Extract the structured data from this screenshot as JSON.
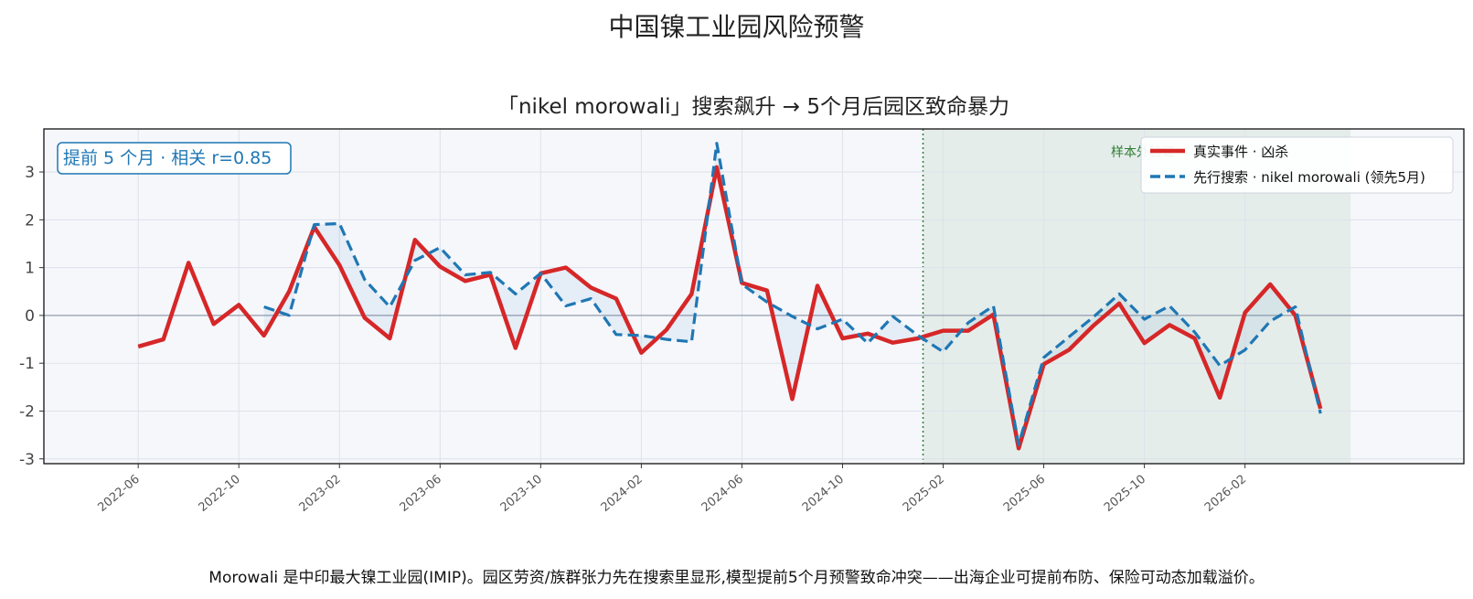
{
  "suptitle": "中国镍工业园风险预警",
  "footer": "Morowali 是中印最大镍工业园(IMIP)。园区劳资/族群张力先在搜索里显形,模型提前5个月预警致命冲突——出海企业可提前布防、保险可动态加载溢价。",
  "colors": {
    "actual": "#d62728",
    "search": "#1f77b4",
    "plot_bg": "#f5f7fb",
    "sample_region": "#2e7d32",
    "grid": "#dde2ea",
    "zero_line": "#8a94a6"
  },
  "chart_data": {
    "type": "line",
    "title": "「nikel morowali」搜索飙升 → 5个月后园区致命暴力",
    "annotation": "提前 5 个月 · 相关 r=0.85",
    "sample_label": "样本外验证",
    "sample_start": "2025-01",
    "sample_end": "2026-06",
    "ylim": [
      -3.1,
      3.9
    ],
    "yticks": [
      -3,
      -2,
      -1,
      0,
      1,
      2,
      3
    ],
    "xticks": [
      "2022-06",
      "2022-10",
      "2023-02",
      "2023-06",
      "2023-10",
      "2024-02",
      "2024-06",
      "2024-10",
      "2025-02",
      "2025-06",
      "2025-10",
      "2026-02"
    ],
    "xlim": [
      "2022-03",
      "2026-11"
    ],
    "grid": true,
    "legend_position": "top-right",
    "series": [
      {
        "name": "真实事件 · 凶杀",
        "style": "solid",
        "x": [
          "2022-06",
          "2022-07",
          "2022-08",
          "2022-09",
          "2022-10",
          "2022-11",
          "2022-12",
          "2023-01",
          "2023-02",
          "2023-03",
          "2023-04",
          "2023-05",
          "2023-06",
          "2023-07",
          "2023-08",
          "2023-09",
          "2023-10",
          "2023-11",
          "2023-12",
          "2024-01",
          "2024-02",
          "2024-03",
          "2024-04",
          "2024-05",
          "2024-06",
          "2024-07",
          "2024-08",
          "2024-09",
          "2024-10",
          "2024-11",
          "2024-12",
          "2025-01",
          "2025-02",
          "2025-03",
          "2025-04",
          "2025-05",
          "2025-06",
          "2025-07",
          "2025-08",
          "2025-09",
          "2025-10",
          "2025-11",
          "2025-12",
          "2026-01",
          "2026-02",
          "2026-03",
          "2026-04",
          "2026-05"
        ],
        "values": [
          -0.65,
          -0.5,
          1.1,
          -0.18,
          0.22,
          -0.42,
          0.5,
          1.85,
          1.05,
          -0.05,
          -0.48,
          1.58,
          1.02,
          0.72,
          0.85,
          -0.68,
          0.88,
          1.0,
          0.58,
          0.35,
          -0.78,
          -0.3,
          0.45,
          3.1,
          0.68,
          0.52,
          -1.75,
          0.62,
          -0.48,
          -0.38,
          -0.57,
          -0.48,
          -0.32,
          -0.32,
          0.02,
          -2.78,
          -1.02,
          -0.72,
          -0.2,
          0.25,
          -0.58,
          -0.2,
          -0.48,
          -1.72,
          0.06,
          0.65,
          0.0,
          -1.95
        ]
      },
      {
        "name": "先行搜索 · nikel morowali (领先5月)",
        "style": "dashed",
        "x": [
          "2022-11",
          "2022-12",
          "2023-01",
          "2023-02",
          "2023-03",
          "2023-04",
          "2023-05",
          "2023-06",
          "2023-07",
          "2023-08",
          "2023-09",
          "2023-10",
          "2023-11",
          "2023-12",
          "2024-01",
          "2024-02",
          "2024-03",
          "2024-04",
          "2024-05",
          "2024-06",
          "2024-07",
          "2024-08",
          "2024-09",
          "2024-10",
          "2024-11",
          "2024-12",
          "2025-01",
          "2025-02",
          "2025-03",
          "2025-04",
          "2025-05",
          "2025-06",
          "2025-07",
          "2025-08",
          "2025-09",
          "2025-10",
          "2025-11",
          "2025-12",
          "2026-01",
          "2026-02",
          "2026-03",
          "2026-04",
          "2026-05"
        ],
        "values": [
          0.18,
          0.0,
          1.9,
          1.92,
          0.75,
          0.18,
          1.15,
          1.42,
          0.85,
          0.9,
          0.45,
          0.88,
          0.2,
          0.35,
          -0.4,
          -0.42,
          -0.5,
          -0.55,
          3.6,
          0.65,
          0.28,
          -0.02,
          -0.28,
          -0.08,
          -0.58,
          -0.02,
          -0.42,
          -0.76,
          -0.15,
          0.2,
          -2.7,
          -0.88,
          -0.45,
          -0.02,
          0.45,
          -0.08,
          0.2,
          -0.35,
          -1.05,
          -0.72,
          -0.12,
          0.18,
          -2.05
        ]
      }
    ]
  }
}
